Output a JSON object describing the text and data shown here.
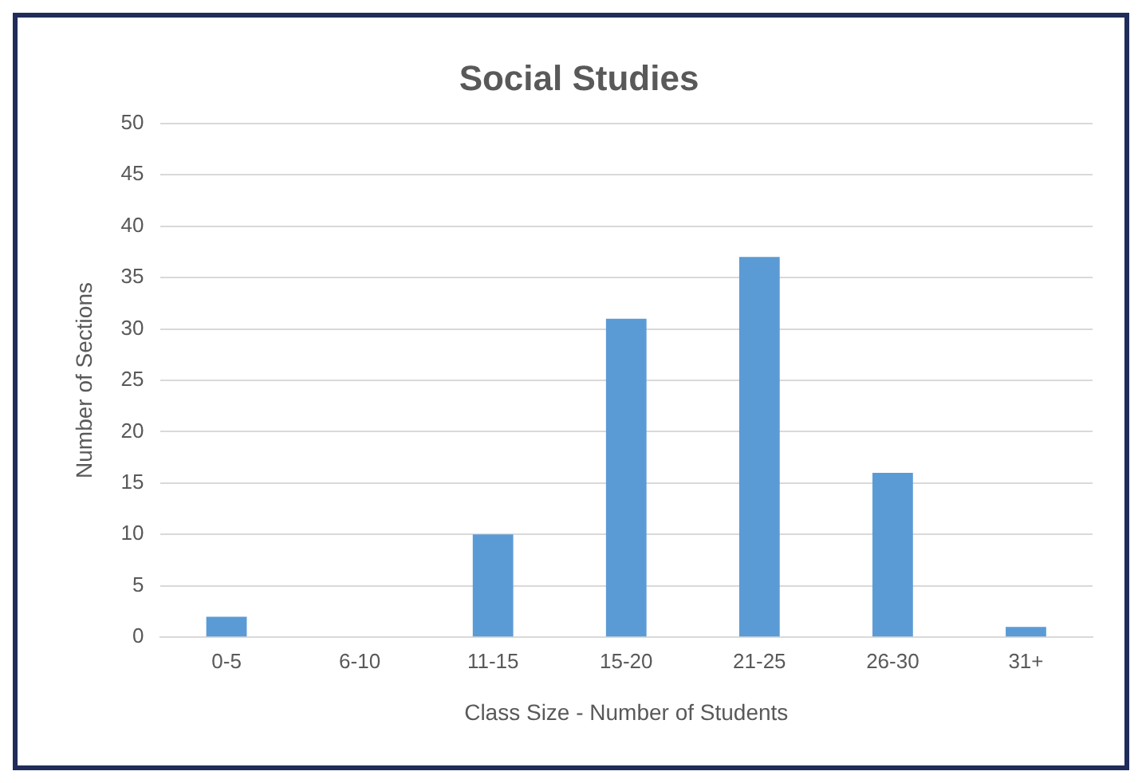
{
  "chart_data": {
    "type": "bar",
    "title": "Social Studies",
    "xlabel": "Class Size - Number of Students",
    "ylabel": "Number of Sections",
    "categories": [
      "0-5",
      "6-10",
      "11-15",
      "15-20",
      "21-25",
      "26-30",
      "31+"
    ],
    "values": [
      2,
      0,
      10,
      31,
      37,
      16,
      1
    ],
    "color": "#5b9bd5",
    "ylim": [
      0,
      50
    ],
    "yticks": [
      0,
      5,
      10,
      15,
      20,
      25,
      30,
      35,
      40,
      45,
      50
    ],
    "grid": "y",
    "legend": false
  }
}
